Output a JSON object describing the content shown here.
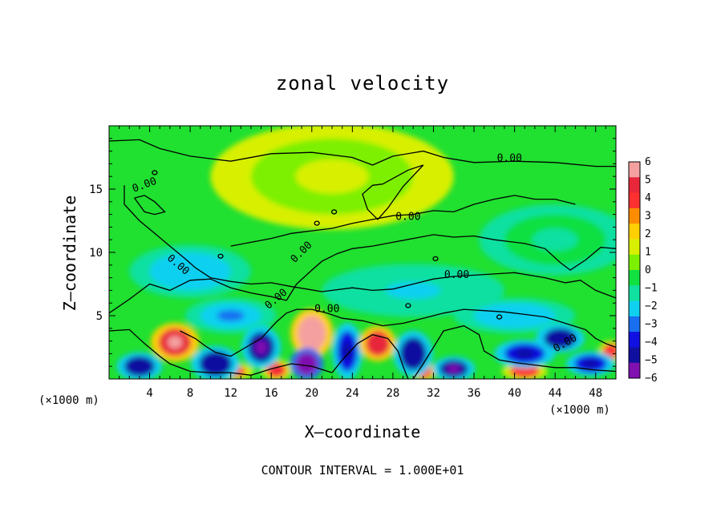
{
  "chart_data": {
    "type": "heatmap",
    "title": "zonal velocity",
    "xlabel": "X—coordinate",
    "ylabel": "Z—coordinate",
    "x_unit_left": "(×1000 m)",
    "x_unit_right": "(×1000 m)",
    "xlim": [
      0,
      50
    ],
    "ylim": [
      0,
      20
    ],
    "x_ticks": [
      4,
      8,
      12,
      16,
      20,
      24,
      28,
      32,
      36,
      40,
      44,
      48
    ],
    "x_tick_labels": [
      "4",
      "8",
      "12",
      "16",
      "20",
      "24",
      "28",
      "32",
      "36",
      "40",
      "44",
      "48"
    ],
    "y_ticks": [
      5,
      10,
      15
    ],
    "y_tick_labels": [
      "5",
      "10",
      "15"
    ],
    "colorbar": {
      "min": -6,
      "max": 6,
      "levels": [
        6,
        5,
        4,
        3,
        2,
        1,
        0,
        -1,
        -2,
        -3,
        -4,
        -5,
        -6
      ],
      "labels": [
        "6",
        "5",
        "4",
        "3",
        "2",
        "1",
        "0",
        "−1",
        "−2",
        "−3",
        "−4",
        "−5",
        "−6"
      ],
      "colors": [
        "#f4a0a0",
        "#e8283a",
        "#ff3030",
        "#ff8c00",
        "#ffd000",
        "#d8f000",
        "#7cf000",
        "#10e040",
        "#10e0a0",
        "#10d0f0",
        "#1870f0",
        "#1010e0",
        "#1010a0",
        "#8010b0"
      ]
    },
    "contour_level_label": "0.00",
    "contour_interval_text": "CONTOUR INTERVAL = 1.000E+01",
    "field_features": [
      {
        "x": 6.5,
        "z": 2.9,
        "value": 5,
        "sx": 1.6,
        "sz": 1.1
      },
      {
        "x": 20,
        "z": 3.6,
        "value": 5.5,
        "sx": 1.4,
        "sz": 1.4
      },
      {
        "x": 26.5,
        "z": 2.8,
        "value": 4.5,
        "sx": 1.2,
        "sz": 1.0
      },
      {
        "x": 3.0,
        "z": 1.0,
        "value": -4.5,
        "sx": 1.5,
        "sz": 0.8
      },
      {
        "x": 10.5,
        "z": 1.2,
        "value": -4.5,
        "sx": 1.6,
        "sz": 1.0
      },
      {
        "x": 15,
        "z": 2.5,
        "value": -5,
        "sx": 1.3,
        "sz": 1.2
      },
      {
        "x": 19.5,
        "z": 1.2,
        "value": -5.5,
        "sx": 1.1,
        "sz": 0.9
      },
      {
        "x": 23.5,
        "z": 2.2,
        "value": -4,
        "sx": 1.0,
        "sz": 1.6
      },
      {
        "x": 30,
        "z": 2.0,
        "value": -4.5,
        "sx": 1.3,
        "sz": 1.3
      },
      {
        "x": 34,
        "z": 0.8,
        "value": -5,
        "sx": 1.4,
        "sz": 0.7
      },
      {
        "x": 41,
        "z": 2.0,
        "value": -4,
        "sx": 2.0,
        "sz": 0.8
      },
      {
        "x": 44.5,
        "z": 3.2,
        "value": -4.5,
        "sx": 1.6,
        "sz": 0.8
      },
      {
        "x": 47.5,
        "z": 1.2,
        "value": -4,
        "sx": 1.6,
        "sz": 0.7
      },
      {
        "x": 12,
        "z": 0.6,
        "value": 3.5,
        "sx": 1.5,
        "sz": 0.5
      },
      {
        "x": 16.5,
        "z": 0.7,
        "value": 3.8,
        "sx": 1.0,
        "sz": 0.6
      },
      {
        "x": 31,
        "z": 0.6,
        "value": 4,
        "sx": 0.8,
        "sz": 0.5
      },
      {
        "x": 41,
        "z": 0.6,
        "value": 3.5,
        "sx": 1.5,
        "sz": 0.5
      },
      {
        "x": 49.5,
        "z": 2.2,
        "value": 3.5,
        "sx": 0.8,
        "sz": 0.6
      },
      {
        "x": 8,
        "z": 8.5,
        "value": -2,
        "sx": 4.0,
        "sz": 1.5
      },
      {
        "x": 30,
        "z": 7.0,
        "value": -1.5,
        "sx": 6.0,
        "sz": 1.5
      },
      {
        "x": 12,
        "z": 5.0,
        "value": -2.2,
        "sx": 3.0,
        "sz": 1.0
      },
      {
        "x": 40,
        "z": 5.0,
        "value": -2.0,
        "sx": 4.0,
        "sz": 1.0
      },
      {
        "x": 22,
        "z": 16,
        "value": 0.5,
        "sx": 8.0,
        "sz": 3.0
      },
      {
        "x": 44,
        "z": 11,
        "value": -0.8,
        "sx": 5.0,
        "sz": 2.0
      }
    ]
  }
}
